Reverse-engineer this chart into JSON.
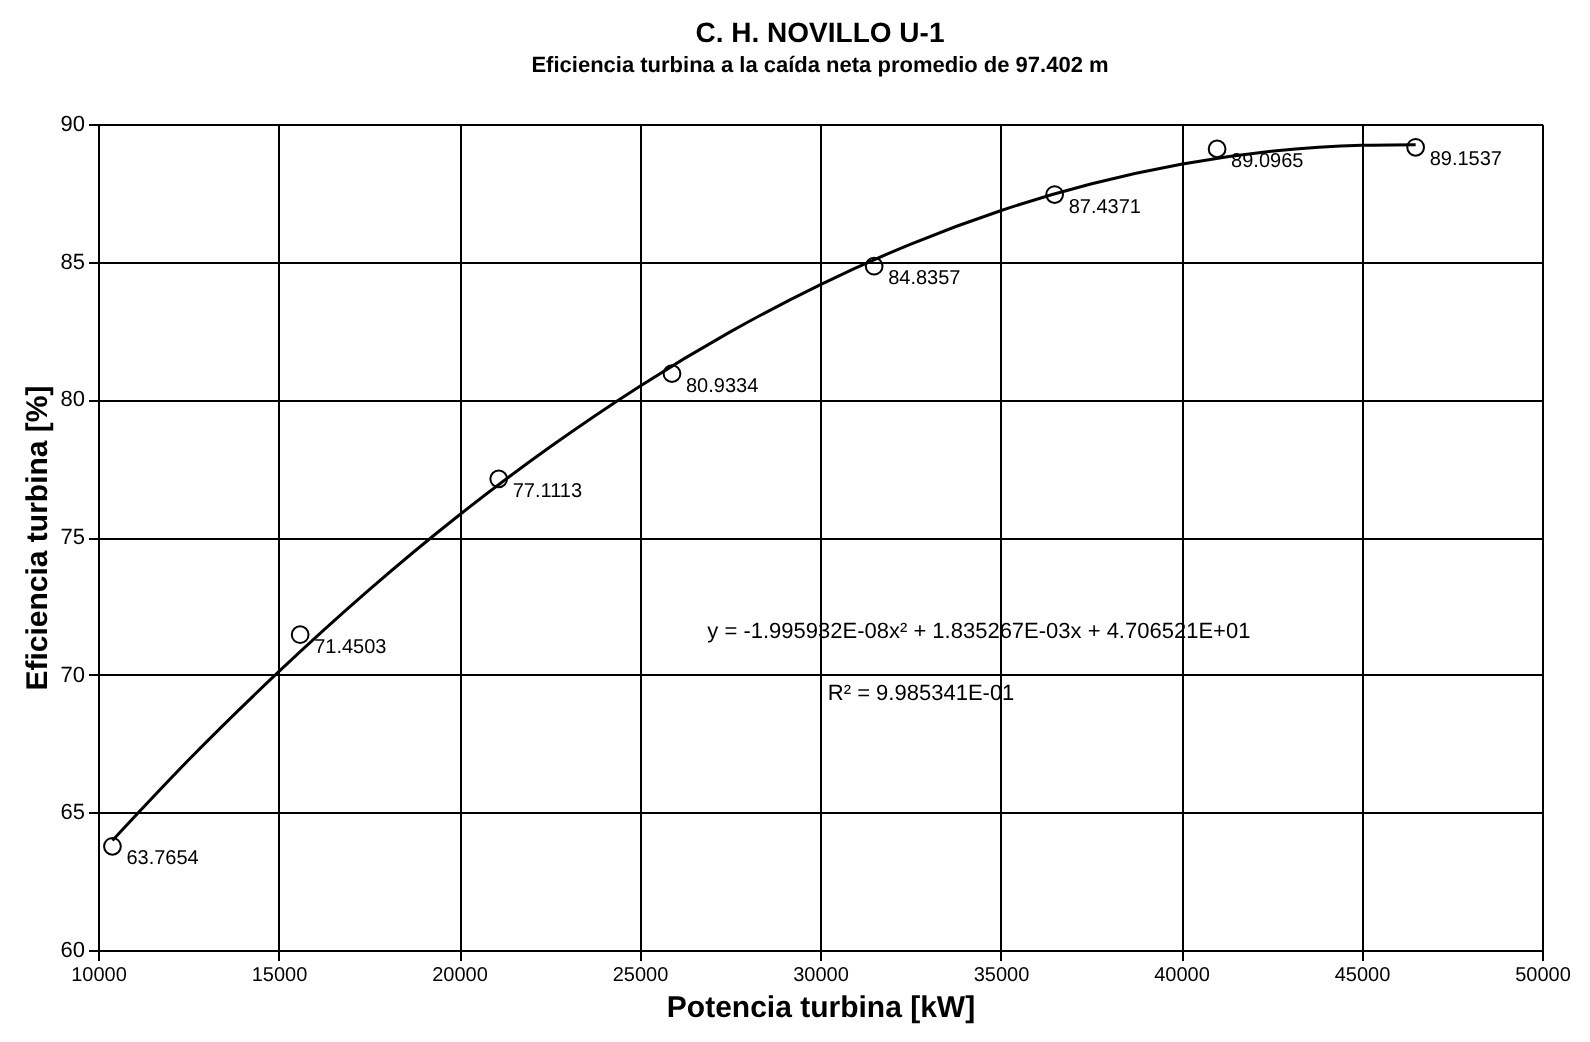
{
  "chart_data": {
    "type": "scatter",
    "title": "C. H. NOVILLO U-1",
    "subtitle": "Eficiencia turbina a la caída neta promedio de 97.402 m",
    "xlabel": "Potencia turbina [kW]",
    "ylabel": "Eficiencia turbina [%]",
    "x": [
      10400,
      15600,
      21100,
      25900,
      31500,
      36500,
      41000,
      46500
    ],
    "series": [
      {
        "color": "#000000",
        "marker": "circle",
        "values": [
          63.7654,
          71.4503,
          77.1113,
          80.9334,
          84.8357,
          87.4371,
          89.0965,
          89.1537
        ],
        "value_labels": [
          "63.7654",
          "71.4503",
          "77.1113",
          "80.9334",
          "84.8357",
          "87.4371",
          "89.0965",
          "89.1537"
        ]
      },
      {
        "type": "line",
        "color": "#000000",
        "marker": "none",
        "line_style": "solid",
        "x": [
          10400,
          12500,
          15000,
          17500,
          20000,
          22500,
          25000,
          27500,
          30000,
          32500,
          35000,
          37500,
          40000,
          42500,
          45000,
          46500
        ],
        "values": [
          63.98,
          66.89,
          70.1,
          73.07,
          75.79,
          78.25,
          80.47,
          82.44,
          84.16,
          85.63,
          86.85,
          87.82,
          88.54,
          89.01,
          89.23,
          89.25
        ]
      }
    ],
    "annotations": [
      "y = -1.995932E-08x² + 1.835267E-03x + 4.706521E+01",
      "R² = 9.985341E-01"
    ],
    "xlim": [
      10000,
      50000
    ],
    "xticks": [
      10000,
      15000,
      20000,
      25000,
      30000,
      35000,
      40000,
      45000,
      50000
    ],
    "ylim": [
      60,
      90
    ],
    "yticks": [
      60,
      65,
      70,
      75,
      80,
      85,
      90
    ],
    "grid": true
  }
}
